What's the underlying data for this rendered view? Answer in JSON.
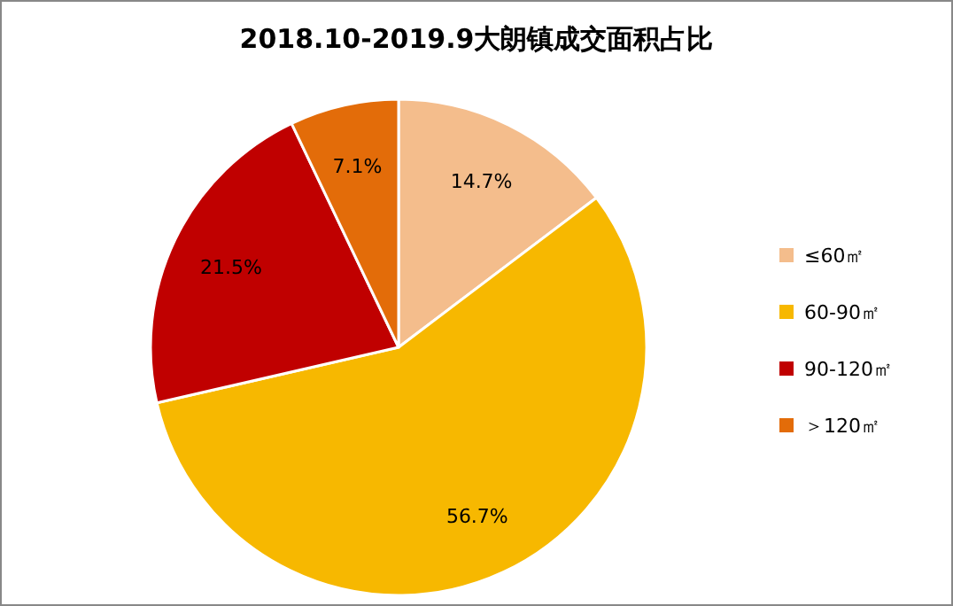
{
  "chart_data": {
    "type": "pie",
    "title": "2018.10-2019.9大朗镇成交面积占比",
    "categories": [
      "≤60㎡",
      "60-90㎡",
      "90-120㎡",
      "＞120㎡"
    ],
    "values": [
      14.7,
      56.7,
      21.5,
      7.1
    ],
    "colors": [
      "#f4bd8c",
      "#f7b800",
      "#c00000",
      "#e36c09"
    ],
    "value_labels": [
      "14.7%",
      "56.7%",
      "21.5%",
      "7.1%"
    ],
    "legend": "right"
  }
}
